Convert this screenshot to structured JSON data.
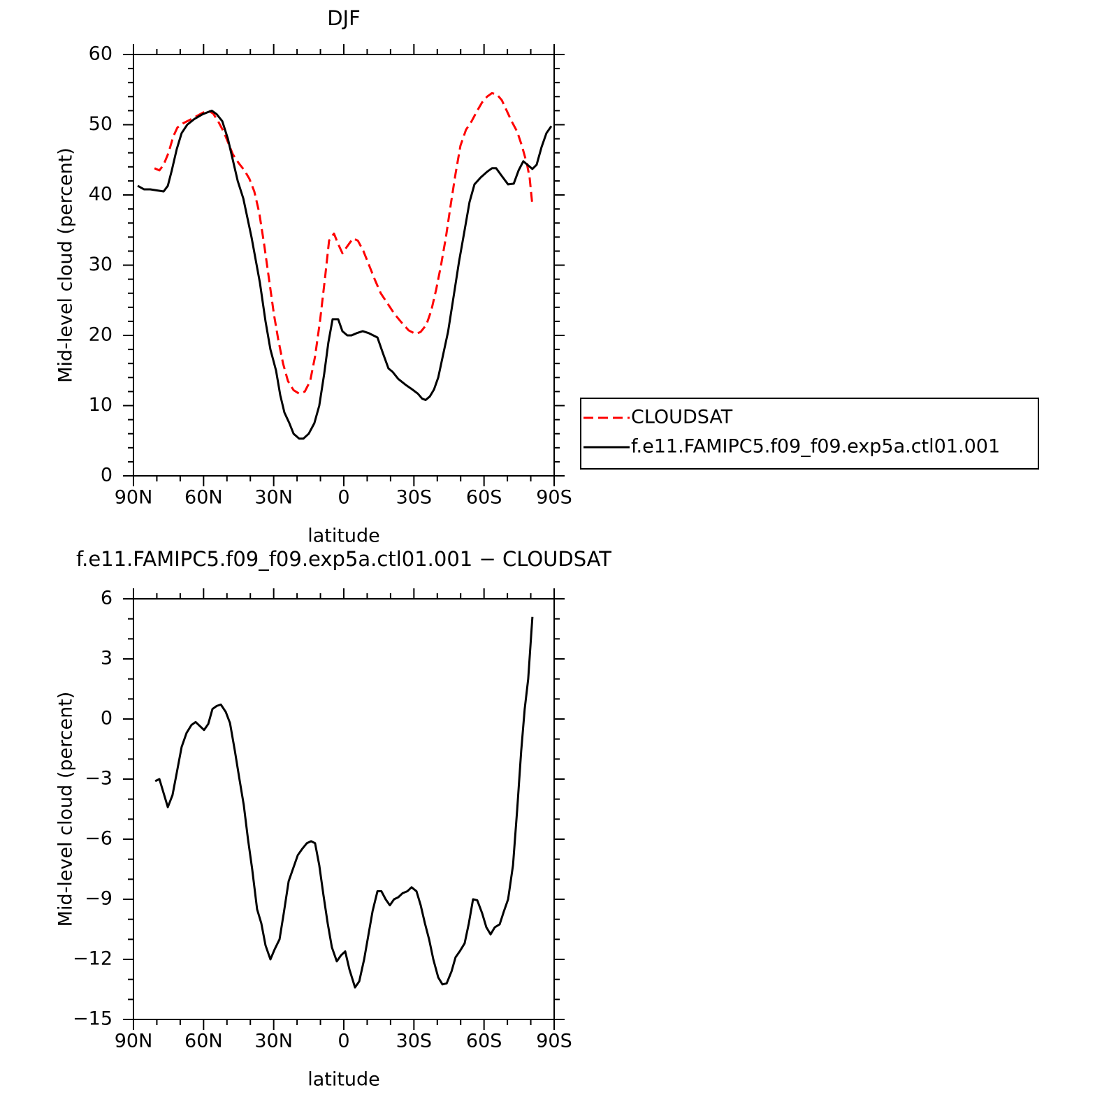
{
  "chart_data": [
    {
      "type": "line",
      "title": "DJF",
      "x_label": "latitude",
      "y_label": "Mid-level cloud (percent)",
      "xlim": [
        90,
        -90
      ],
      "ylim": [
        0,
        60
      ],
      "xticks": [
        {
          "value": 90,
          "label": "90N"
        },
        {
          "value": 60,
          "label": "60N"
        },
        {
          "value": 30,
          "label": "30N"
        },
        0,
        {
          "value": -30,
          "label": "30S"
        },
        {
          "value": -60,
          "label": "60S"
        },
        {
          "value": -90,
          "label": "90S"
        }
      ],
      "yticks": [
        0,
        10,
        20,
        30,
        40,
        50,
        60
      ],
      "legend": "right",
      "series": [
        {
          "name": "CLOUDSAT",
          "color": "#ff0000",
          "style": "dashed",
          "x": [
            81,
            78.9,
            77.1,
            75,
            73,
            71.2,
            68.8,
            65.8,
            63.1,
            60.4,
            58,
            55.9,
            53.8,
            51.4,
            49.3,
            47.5,
            44.9,
            42.5,
            40.4,
            38.3,
            36.2,
            34.1,
            32,
            29.9,
            28.1,
            26,
            23.9,
            21.5,
            19.1,
            16.7,
            14.4,
            12.3,
            10.2,
            8.1,
            6.3,
            4.2,
            2.4,
            0.6,
            -1.5,
            -3.9,
            -6,
            -8.4,
            -10.8,
            -13.2,
            -15.8,
            -18.8,
            -21.8,
            -24.8,
            -27.8,
            -30.8,
            -32.9,
            -35.3,
            -37.4,
            -39.5,
            -41.6,
            -43.7,
            -45.7,
            -47.8,
            -49.9,
            -52.3,
            -54.7,
            -57.1,
            -59.2,
            -61.3,
            -63.4,
            -65.5,
            -67.6,
            -69.7,
            -71.8,
            -74.2,
            -76.2,
            -78.3,
            -79.5,
            -80.7
          ],
          "values": [
            43.8,
            43.5,
            44.3,
            46,
            48.3,
            49.6,
            50.2,
            50.7,
            51.2,
            51.7,
            52,
            51.6,
            50.5,
            49,
            47.3,
            45.8,
            44.5,
            43.5,
            42.3,
            40.5,
            37.5,
            33,
            28,
            23,
            19.5,
            16,
            13.5,
            12.2,
            11.7,
            12,
            13.5,
            17,
            22,
            28,
            33.5,
            34.5,
            33,
            31.7,
            32.7,
            33.8,
            33.5,
            32,
            30,
            28,
            26,
            24.5,
            23,
            21.8,
            20.7,
            20.2,
            20.5,
            21.5,
            23.5,
            26.5,
            30,
            34,
            38.5,
            43,
            47,
            49.3,
            50.5,
            52,
            53.2,
            54,
            54.5,
            54.3,
            53.5,
            52,
            50.5,
            49,
            47,
            44.5,
            42.5,
            38.5
          ]
        },
        {
          "name": "f.e11.FAMIPC5.f09_f09.exp5a.ctl01.001",
          "color": "#000000",
          "style": "solid",
          "x": [
            88.2,
            85.5,
            82.8,
            77.1,
            75.3,
            73.6,
            71.5,
            69.4,
            67,
            64,
            60.4,
            56.5,
            54.4,
            52,
            49.6,
            47.5,
            45.4,
            43,
            39.5,
            35.9,
            33.5,
            31.4,
            29,
            27.2,
            25.4,
            23.3,
            21.5,
            19.1,
            17.3,
            15,
            12.6,
            10.5,
            8.4,
            6.6,
            4.8,
            2.4,
            0.6,
            -1.5,
            -3.3,
            -5.4,
            -8.1,
            -10.8,
            -14.4,
            -16.7,
            -19.1,
            -20.9,
            -23.3,
            -26.3,
            -29.3,
            -31.7,
            -33.5,
            -35,
            -36.8,
            -38.6,
            -40.4,
            -42.2,
            -44.6,
            -47.2,
            -49.3,
            -51.7,
            -53.8,
            -55.9,
            -58.6,
            -61.3,
            -63.4,
            -65.2,
            -67.6,
            -70.3,
            -72.7,
            -74.8,
            -76.8,
            -78.9,
            -80.7,
            -82.5,
            -84.6,
            -86.7,
            -88.8
          ],
          "values": [
            41.3,
            40.8,
            40.8,
            40.5,
            41.3,
            43.5,
            46.5,
            48.8,
            50,
            50.8,
            51.5,
            52,
            51.5,
            50.5,
            48,
            45,
            42,
            39.5,
            34,
            27.5,
            22,
            18,
            15,
            11.5,
            9,
            7.5,
            6,
            5.3,
            5.3,
            6,
            7.5,
            10,
            14.5,
            19,
            22.3,
            22.3,
            20.6,
            20,
            20,
            20.3,
            20.6,
            20.3,
            19.7,
            17.5,
            15.3,
            14.8,
            13.8,
            13,
            12.3,
            11.7,
            11,
            10.8,
            11.3,
            12.3,
            14,
            16.8,
            20.5,
            26,
            30.5,
            35,
            39,
            41.5,
            42.5,
            43.3,
            43.8,
            43.8,
            42.7,
            41.5,
            41.6,
            43.5,
            44.8,
            44.2,
            43.7,
            44.3,
            46.8,
            48.8,
            49.8
          ]
        }
      ]
    },
    {
      "type": "line",
      "title": "f.e11.FAMIPC5.f09_f09.exp5a.ctl01.001 − CLOUDSAT",
      "x_label": "latitude",
      "y_label": "Mid-level cloud (percent)",
      "xlim": [
        90,
        -90
      ],
      "ylim": [
        -15,
        6
      ],
      "xticks": [
        {
          "value": 90,
          "label": "90N"
        },
        {
          "value": 60,
          "label": "60N"
        },
        {
          "value": 30,
          "label": "30N"
        },
        0,
        {
          "value": -30,
          "label": "30S"
        },
        {
          "value": -60,
          "label": "60S"
        },
        {
          "value": -90,
          "label": "90S"
        }
      ],
      "yticks": [
        {
          "value": -15,
          "label": "−15"
        },
        {
          "value": -12,
          "label": "−12"
        },
        {
          "value": -9,
          "label": "−9"
        },
        {
          "value": -6,
          "label": "−6"
        },
        {
          "value": -3,
          "label": "−3"
        },
        0,
        3,
        6
      ],
      "series": [
        {
          "color": "#000000",
          "style": "solid",
          "x": [
            80.7,
            78.9,
            77.1,
            75.3,
            73.3,
            71.5,
            69.4,
            67.3,
            65.2,
            63.4,
            61.6,
            59.8,
            58,
            56.2,
            54.4,
            52.6,
            50.5,
            48.7,
            46.6,
            44.8,
            42.8,
            41,
            39.2,
            37.1,
            35.3,
            33.5,
            31.4,
            29.6,
            27.5,
            25.7,
            23.6,
            21.8,
            19.7,
            17.9,
            15.8,
            14,
            12.3,
            10.5,
            8.7,
            6.9,
            5.1,
            3,
            1.2,
            -0.6,
            -2.4,
            -4.8,
            -6.6,
            -8.7,
            -10.5,
            -12.3,
            -14.4,
            -16.1,
            -17.9,
            -19.7,
            -21.5,
            -23.3,
            -25.1,
            -27.2,
            -29,
            -31.1,
            -32.9,
            -34.7,
            -36.5,
            -38.3,
            -40.4,
            -42.2,
            -44,
            -46.1,
            -47.8,
            -49.6,
            -51.7,
            -53.5,
            -55.3,
            -57.1,
            -59.2,
            -61,
            -62.8,
            -64.6,
            -66.7,
            -68.5,
            -70.3,
            -72.4,
            -74.2,
            -75.9,
            -77.4,
            -78.9,
            -80.7
          ],
          "values": [
            -3.1,
            -3,
            -3.7,
            -4.4,
            -3.8,
            -2.7,
            -1.4,
            -0.7,
            -0.3,
            -0.15,
            -0.35,
            -0.55,
            -0.25,
            0.5,
            0.65,
            0.72,
            0.35,
            -0.2,
            -1.6,
            -2.9,
            -4.3,
            -6,
            -7.5,
            -9.5,
            -10.2,
            -11.3,
            -12,
            -11.5,
            -11,
            -9.7,
            -8.1,
            -7.5,
            -6.8,
            -6.5,
            -6.2,
            -6.1,
            -6.2,
            -7.3,
            -8.8,
            -10.2,
            -11.4,
            -12.1,
            -11.8,
            -11.6,
            -12.5,
            -13.4,
            -13.1,
            -12,
            -10.8,
            -9.6,
            -8.6,
            -8.6,
            -9,
            -9.3,
            -9,
            -8.9,
            -8.7,
            -8.6,
            -8.4,
            -8.6,
            -9.3,
            -10.2,
            -11,
            -12,
            -12.9,
            -13.25,
            -13.2,
            -12.6,
            -11.9,
            -11.6,
            -11.2,
            -10.2,
            -9,
            -9.05,
            -9.7,
            -10.4,
            -10.75,
            -10.4,
            -10.25,
            -9.6,
            -9,
            -7.3,
            -4.5,
            -1.6,
            0.5,
            2,
            5.1
          ]
        }
      ]
    }
  ]
}
